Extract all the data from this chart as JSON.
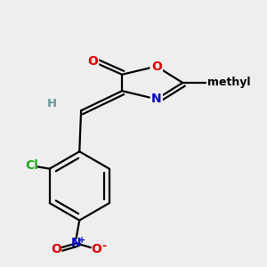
{
  "background_color": "#eeeeee",
  "bond_lw": 1.6,
  "font_size_atom": 10,
  "font_size_small": 8.5,
  "colors": {
    "C": "#000000",
    "O": "#dd0000",
    "N": "#0000cc",
    "Cl": "#22aa22",
    "H": "#669999",
    "bond": "#000000"
  }
}
